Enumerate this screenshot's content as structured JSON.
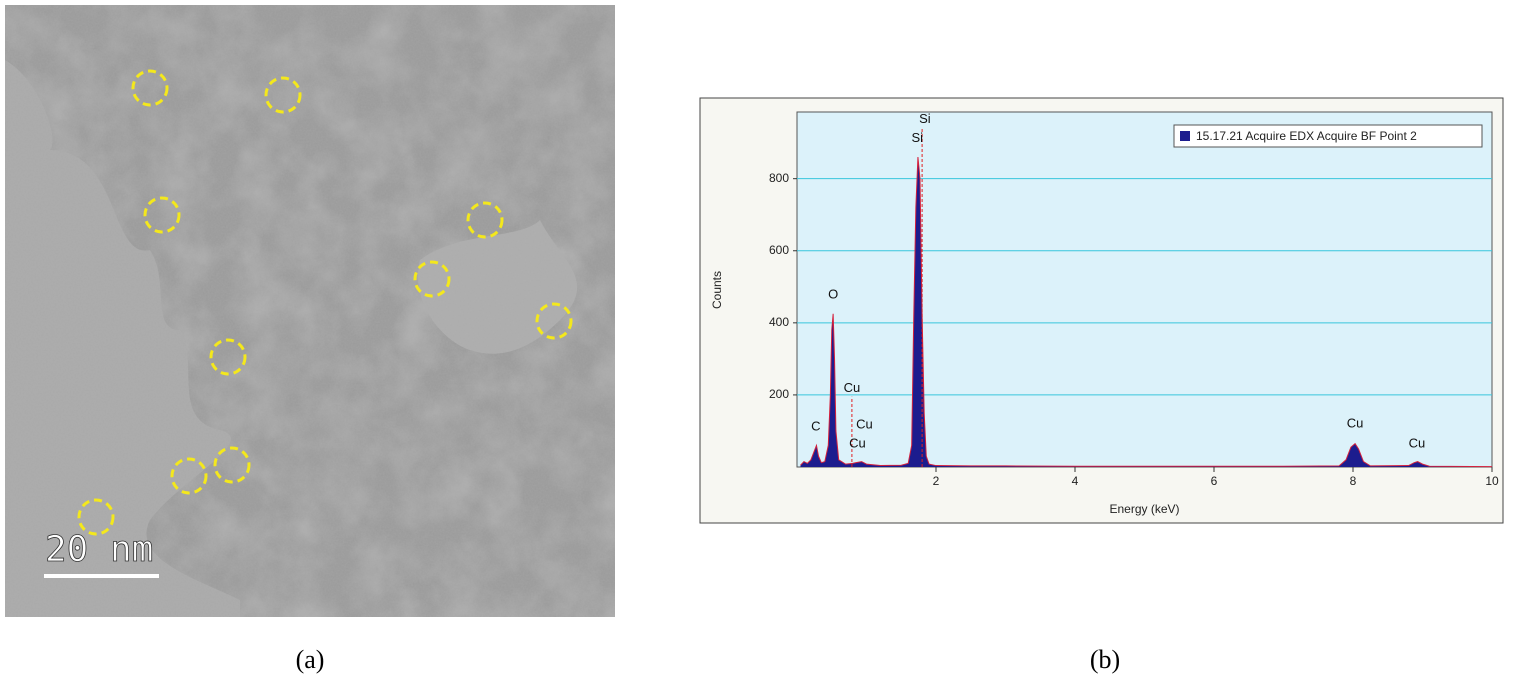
{
  "figure": {
    "panel_a": {
      "label": "(a)",
      "scale_bar": "20 nm"
    },
    "panel_b": {
      "label": "(b)"
    }
  },
  "chart_data": {
    "type": "area",
    "xlabel": "Energy (keV)",
    "ylabel": "Counts",
    "xlim": [
      0,
      10
    ],
    "xticks": [
      2,
      4,
      6,
      8,
      10
    ],
    "ylim": [
      0,
      985
    ],
    "yticks": [
      200,
      400,
      600,
      800
    ],
    "grid": true,
    "background": "#dcf2fa",
    "grid_color": "#38c6dc",
    "legend": "top-right",
    "series": [
      {
        "name": "15.17.21 Acquire EDX Acquire BF Point 2",
        "color": "#1c1c8e",
        "edge_color": "#d4203c",
        "x": [
          0.05,
          0.1,
          0.15,
          0.2,
          0.25,
          0.28,
          0.31,
          0.35,
          0.4,
          0.45,
          0.48,
          0.5,
          0.52,
          0.54,
          0.56,
          0.6,
          0.7,
          0.8,
          0.85,
          0.93,
          1.0,
          1.2,
          1.5,
          1.6,
          1.65,
          1.68,
          1.71,
          1.74,
          1.77,
          1.8,
          1.83,
          1.86,
          1.9,
          2.0,
          2.5,
          3,
          4,
          5,
          6,
          7,
          7.8,
          7.9,
          7.97,
          8.03,
          8.08,
          8.15,
          8.25,
          8.8,
          8.88,
          8.93,
          9.0,
          9.1,
          10
        ],
        "values": [
          5,
          15,
          10,
          20,
          45,
          60,
          30,
          12,
          15,
          60,
          200,
          380,
          425,
          300,
          100,
          20,
          8,
          10,
          12,
          15,
          8,
          4,
          5,
          10,
          60,
          420,
          720,
          860,
          800,
          420,
          150,
          30,
          8,
          4,
          3,
          3,
          2,
          2,
          2,
          2,
          3,
          20,
          55,
          65,
          50,
          15,
          3,
          4,
          12,
          15,
          8,
          2,
          1
        ]
      }
    ],
    "markers": [
      {
        "x": 0.79,
        "y": 195
      },
      {
        "x": 1.8,
        "y": 940
      }
    ],
    "annotations": [
      {
        "text": "C",
        "x": 0.27,
        "y": 89
      },
      {
        "text": "O",
        "x": 0.52,
        "y": 455
      },
      {
        "text": "Cu",
        "x": 0.79,
        "y": 195
      },
      {
        "text": "Cu",
        "x": 0.97,
        "y": 94
      },
      {
        "text": "Cu",
        "x": 0.87,
        "y": 42
      },
      {
        "text": "Si",
        "x": 1.84,
        "y": 942
      },
      {
        "text": "Si",
        "x": 1.73,
        "y": 889
      },
      {
        "text": "Cu",
        "x": 8.03,
        "y": 97
      },
      {
        "text": "Cu",
        "x": 8.92,
        "y": 42
      }
    ]
  }
}
